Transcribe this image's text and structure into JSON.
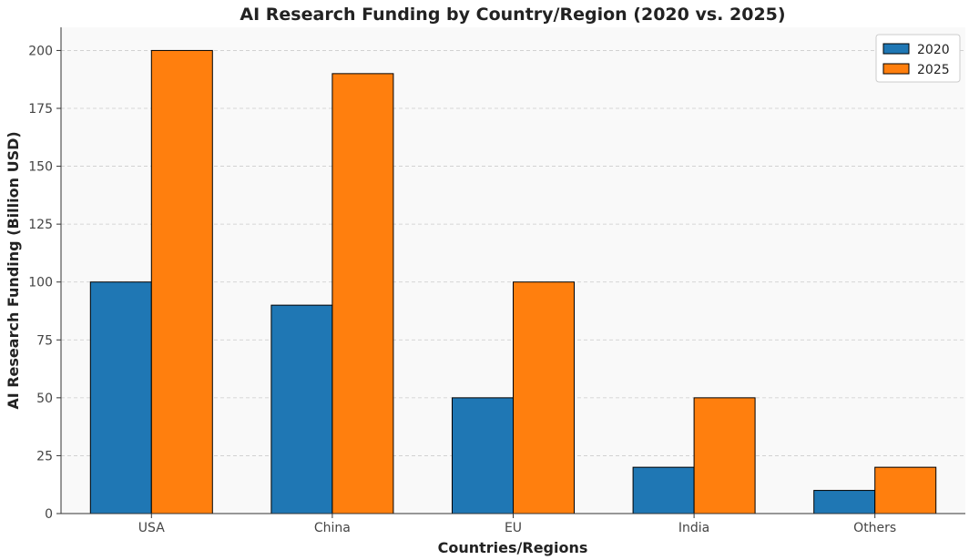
{
  "chart_data": {
    "type": "bar",
    "title": "AI Research Funding by Country/Region (2020 vs. 2025)",
    "xlabel": "Countries/Regions",
    "ylabel": "AI Research Funding (Billion USD)",
    "categories": [
      "USA",
      "China",
      "EU",
      "India",
      "Others"
    ],
    "series": [
      {
        "name": "2020",
        "values": [
          100,
          90,
          50,
          20,
          10
        ],
        "color": "#1f77b4"
      },
      {
        "name": "2025",
        "values": [
          200,
          190,
          100,
          50,
          20
        ],
        "color": "#ff7f0e"
      }
    ],
    "ylim": [
      0,
      210
    ],
    "yticks": [
      0,
      25,
      50,
      75,
      100,
      125,
      150,
      175,
      200
    ],
    "grid": true,
    "legend_position": "top-right",
    "plot_background": "#f9f9f9",
    "edge_color": "#000000"
  }
}
